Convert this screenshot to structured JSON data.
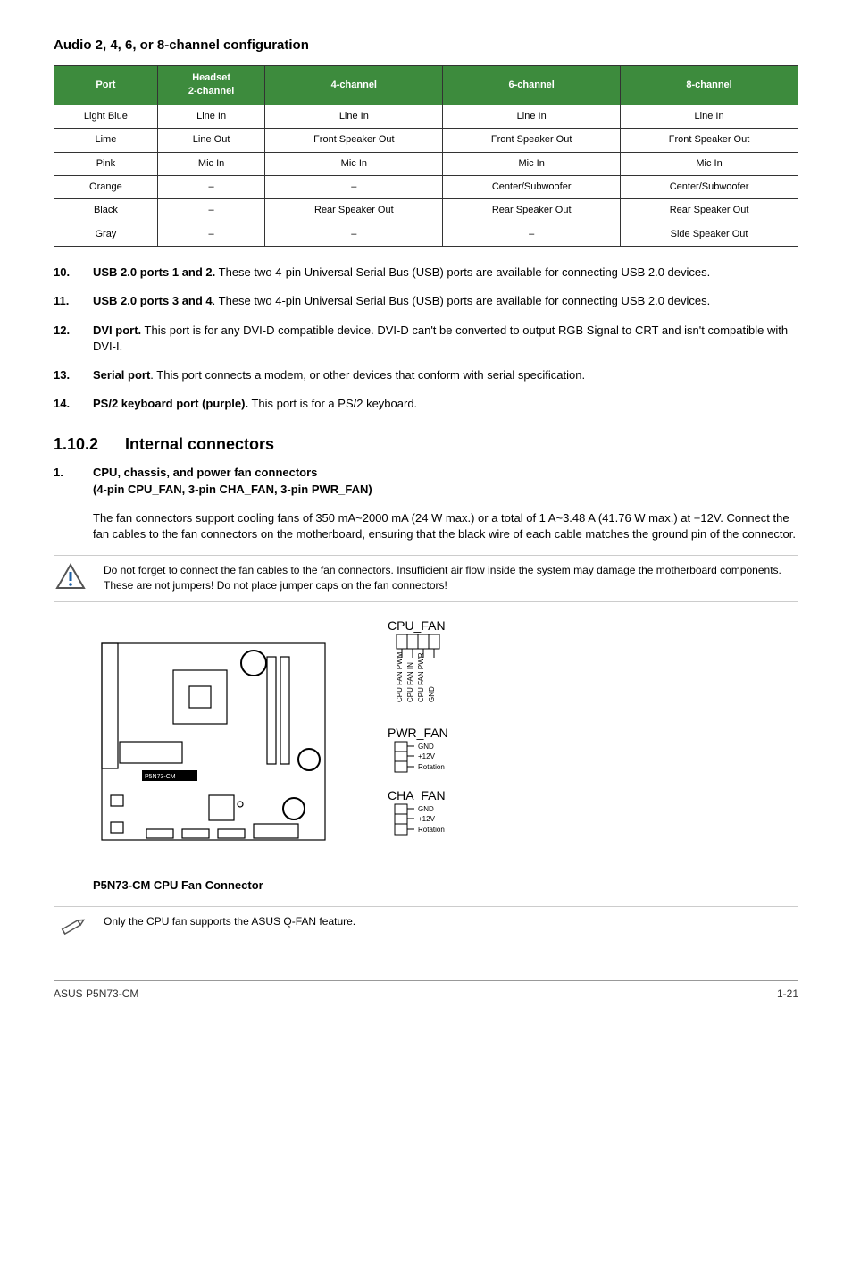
{
  "audio_section": {
    "title": "Audio 2, 4, 6, or 8-channel configuration",
    "headers": [
      "Port",
      "Headset 2-channel",
      "4-channel",
      "6-channel",
      "8-channel"
    ],
    "header_bg": "#3d8b3d",
    "header_fg": "#ffffff",
    "rows": [
      [
        "Light Blue",
        "Line In",
        "Line In",
        "Line In",
        "Line In"
      ],
      [
        "Lime",
        "Line Out",
        "Front Speaker Out",
        "Front Speaker Out",
        "Front Speaker Out"
      ],
      [
        "Pink",
        "Mic In",
        "Mic In",
        "Mic In",
        "Mic In"
      ],
      [
        "Orange",
        "–",
        "–",
        "Center/Subwoofer",
        "Center/Subwoofer"
      ],
      [
        "Black",
        "–",
        "Rear Speaker Out",
        "Rear Speaker Out",
        "Rear Speaker Out"
      ],
      [
        "Gray",
        "–",
        "–",
        "–",
        "Side Speaker Out"
      ]
    ]
  },
  "items": {
    "i10": {
      "num": "10.",
      "bold": "USB 2.0 ports 1 and 2.",
      "rest": " These two 4-pin Universal Serial Bus (USB) ports are available for connecting USB 2.0 devices."
    },
    "i11": {
      "num": "11.",
      "bold": "USB 2.0 ports 3 and 4",
      "rest": ". These two 4-pin Universal Serial Bus (USB) ports are available for connecting USB 2.0 devices."
    },
    "i12": {
      "num": "12.",
      "bold": "DVI port.",
      "rest": " This port is for any DVI-D compatible device. DVI-D can't be converted to output RGB Signal to CRT and isn't compatible with DVI-I."
    },
    "i13": {
      "num": "13.",
      "bold": "Serial port",
      "rest": ". This port connects a modem, or other devices that conform with serial specification."
    },
    "i14": {
      "num": "14.",
      "bold": "PS/2 keyboard port (purple).",
      "rest": " This port is for a PS/2 keyboard."
    }
  },
  "subsection": {
    "num": "1.10.2",
    "title": "Internal connectors"
  },
  "connector1": {
    "num": "1.",
    "title_line1": "CPU, chassis, and power fan connectors",
    "title_line2": "(4-pin CPU_FAN, 3-pin CHA_FAN, 3-pin PWR_FAN)",
    "body": "The fan connectors support cooling fans of 350 mA~2000 mA (24 W max.) or a total of 1 A~3.48 A (41.76 W max.) at +12V. Connect the fan cables to the fan connectors on the motherboard, ensuring that the black wire of each cable matches the ground pin of the connector."
  },
  "warning_note": "Do not forget to connect the fan cables to the fan connectors. Insufficient air flow inside the system may damage the motherboard components. These are not jumpers! Do not place jumper caps on the fan connectors!",
  "diagram": {
    "cpu_fan_label": "CPU_FAN",
    "cpu_fan_pins": [
      "CPU FAN PWM",
      "CPU FAN IN",
      "CPU FAN PWR",
      "GND"
    ],
    "pwr_fan_label": "PWR_FAN",
    "pwr_fan_pins": [
      "GND",
      "+12V",
      "Rotation"
    ],
    "cha_fan_label": "CHA_FAN",
    "cha_fan_pins": [
      "GND",
      "+12V",
      "Rotation"
    ],
    "board_label": "P5N73-CM",
    "caption": "P5N73-CM CPU Fan Connector"
  },
  "pencil_note": "Only the CPU fan supports the ASUS Q-FAN feature.",
  "footer": {
    "left": "ASUS P5N73-CM",
    "right": "1-21"
  }
}
